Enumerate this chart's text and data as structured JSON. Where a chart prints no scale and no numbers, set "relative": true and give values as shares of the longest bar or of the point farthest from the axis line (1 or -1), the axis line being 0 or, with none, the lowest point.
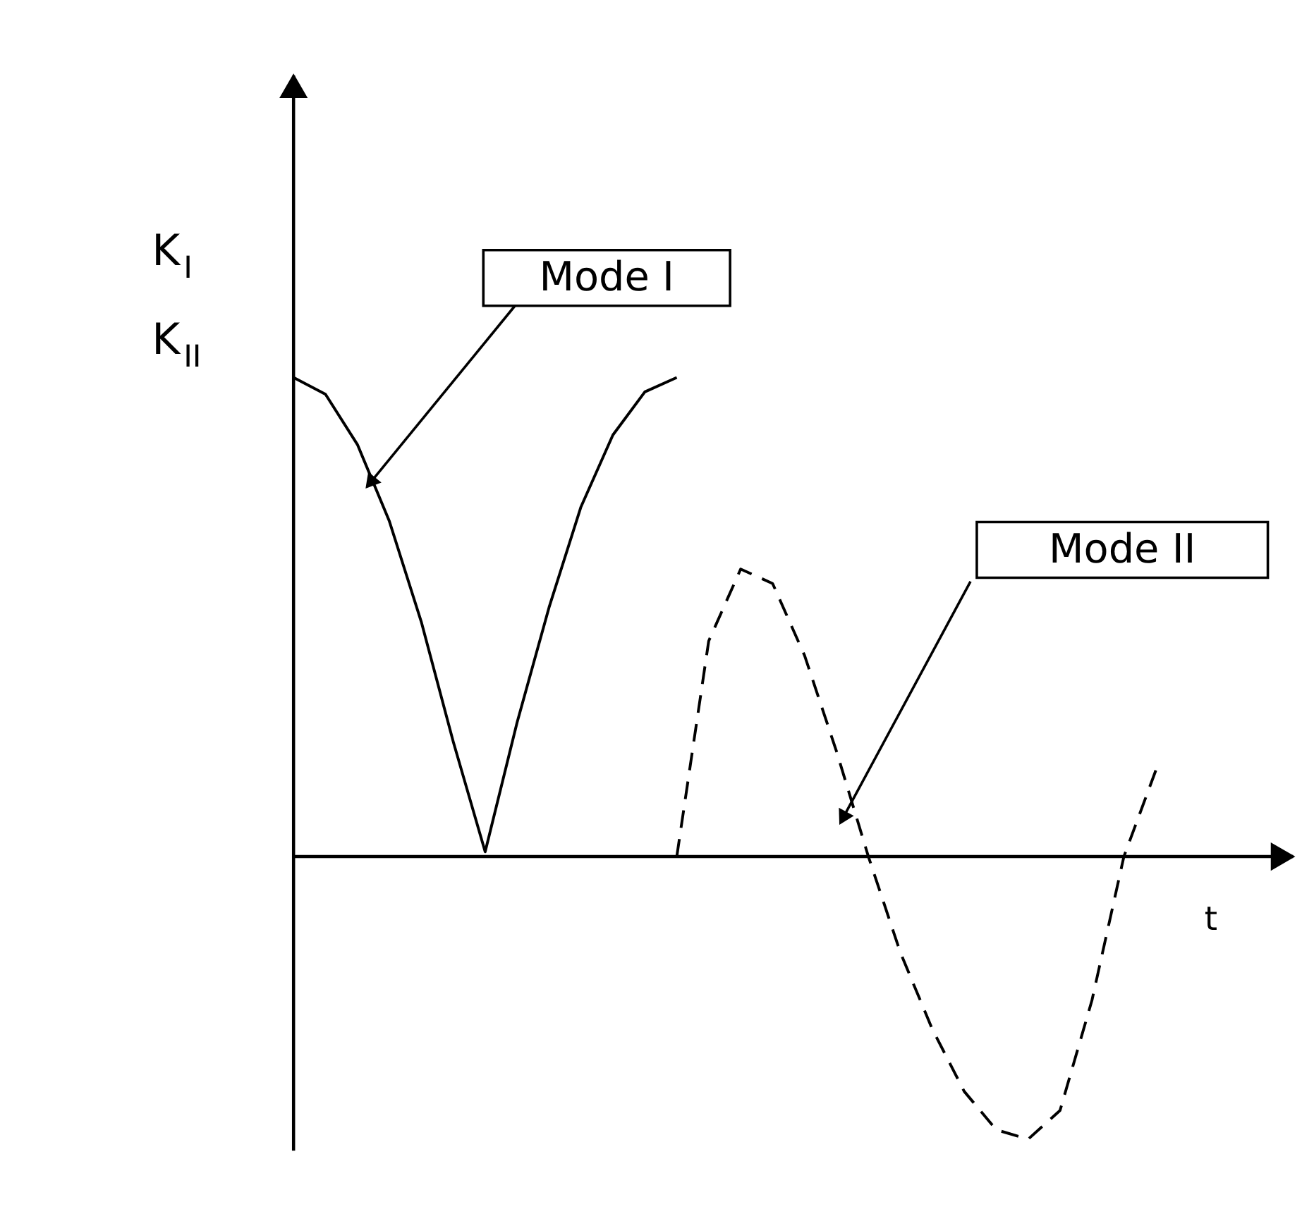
{
  "chart_data": {
    "type": "line",
    "relative": true,
    "xlabel": "t",
    "ylabel": "K$_{I}$ K$_{II}$",
    "categories": [
      null,
      null,
      null,
      null,
      null,
      null,
      null,
      null,
      null,
      null,
      null,
      null,
      null,
      null,
      null,
      null,
      null,
      null,
      null,
      null,
      null,
      null,
      null,
      null,
      null,
      null,
      null,
      null
    ],
    "series": [
      {
        "name": "Mode I",
        "color": "#000000",
        "line_style": "solid",
        "values": [
          1.0,
          0.965,
          0.86,
          0.7,
          0.49,
          0.24,
          0.01,
          0.28,
          0.52,
          0.73,
          0.88,
          0.97,
          1.0,
          null,
          null,
          null,
          null,
          null,
          null,
          null,
          null,
          null,
          null,
          null,
          null,
          null,
          null,
          null
        ]
      },
      {
        "name": "Mode II",
        "color": "#000000",
        "line_style": "dashed",
        "values": [
          null,
          null,
          null,
          null,
          null,
          null,
          null,
          null,
          null,
          null,
          null,
          null,
          0.0,
          0.45,
          0.6,
          0.57,
          0.42,
          0.22,
          0.0,
          -0.2,
          -0.36,
          -0.49,
          -0.57,
          -0.59,
          -0.53,
          -0.3,
          0.0,
          0.18
        ]
      }
    ]
  }
}
